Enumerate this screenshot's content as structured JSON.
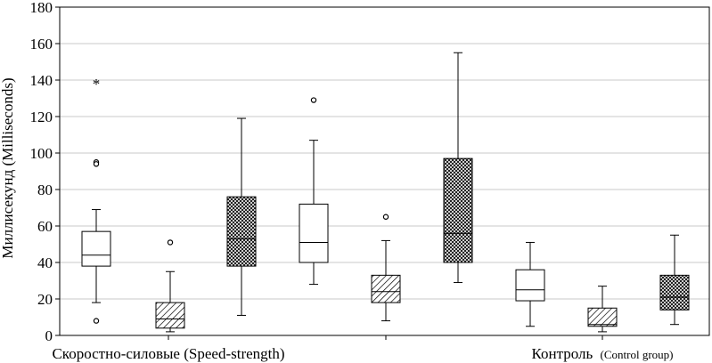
{
  "chart_data": {
    "type": "box",
    "ylabel": "Миллисекунд (Milliseconds)",
    "ylim": [
      0,
      180
    ],
    "yticks": [
      0,
      20,
      40,
      60,
      80,
      100,
      120,
      140,
      160,
      180
    ],
    "grid": true,
    "groups": [
      {
        "label_main": "Скоростно-силовые (Speed-strength)",
        "label_sub": ""
      },
      {
        "label_main": "Контроль",
        "label_sub": "(Control group)"
      }
    ],
    "boxes": [
      {
        "group": 0,
        "pattern": "plain",
        "whisker_low": 18,
        "q1": 38,
        "median": 44,
        "q3": 57,
        "whisker_high": 69,
        "outliers": [
          95,
          94,
          8
        ],
        "extremes": [
          139
        ]
      },
      {
        "group": 0,
        "pattern": "diagonal",
        "whisker_low": 2,
        "q1": 4,
        "median": 9,
        "q3": 18,
        "whisker_high": 35,
        "outliers": [
          51
        ],
        "extremes": []
      },
      {
        "group": 0,
        "pattern": "crosshatch",
        "whisker_low": 11,
        "q1": 38,
        "median": 53,
        "q3": 76,
        "whisker_high": 119,
        "outliers": [],
        "extremes": []
      },
      {
        "group": 0,
        "pattern": "plain",
        "whisker_low": 28,
        "q1": 40,
        "median": 51,
        "q3": 72,
        "whisker_high": 107,
        "outliers": [
          129
        ],
        "extremes": []
      },
      {
        "group": 0,
        "pattern": "diagonal",
        "whisker_low": 8,
        "q1": 18,
        "median": 24,
        "q3": 33,
        "whisker_high": 52,
        "outliers": [
          65
        ],
        "extremes": []
      },
      {
        "group": 0,
        "pattern": "crosshatch",
        "whisker_low": 29,
        "q1": 40,
        "median": 56,
        "q3": 97,
        "whisker_high": 155,
        "outliers": [],
        "extremes": []
      },
      {
        "group": 1,
        "pattern": "plain",
        "whisker_low": 5,
        "q1": 19,
        "median": 25,
        "q3": 36,
        "whisker_high": 51,
        "outliers": [],
        "extremes": []
      },
      {
        "group": 1,
        "pattern": "diagonal",
        "whisker_low": 2,
        "q1": 5,
        "median": 6,
        "q3": 15,
        "whisker_high": 27,
        "outliers": [],
        "extremes": []
      },
      {
        "group": 1,
        "pattern": "crosshatch",
        "whisker_low": 6,
        "q1": 14,
        "median": 21,
        "q3": 33,
        "whisker_high": 55,
        "outliers": [],
        "extremes": []
      }
    ],
    "colors": {
      "line": "#000000",
      "grid": "#c8c8c8",
      "fill": "#ffffff"
    }
  }
}
